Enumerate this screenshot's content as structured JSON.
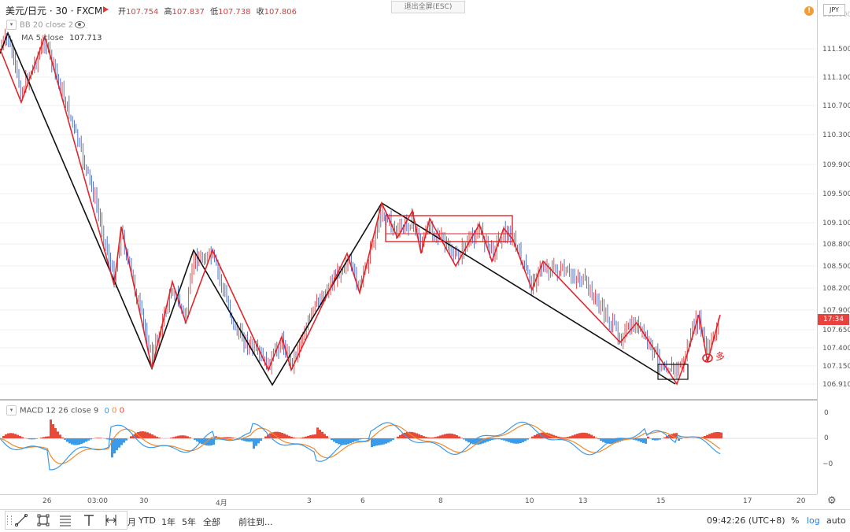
{
  "header": {
    "symbol": "美元/日元 · 30 · FXCM",
    "ohlc": [
      {
        "label": "开",
        "value": "107.754"
      },
      {
        "label": "高",
        "value": "107.837"
      },
      {
        "label": "低",
        "value": "107.738"
      },
      {
        "label": "收",
        "value": "107.806"
      }
    ],
    "exit_fullscreen": "退出全屏(ESC)",
    "warning_icon": "!"
  },
  "indicators": {
    "bb": "BB 20 close 2",
    "ma_label": "MA 5 close",
    "ma_value": "107.713",
    "macd_label": "MACD 12 26 close 9",
    "macd_values": [
      "0",
      "0",
      "0"
    ]
  },
  "price_scale": {
    "currency": "JPY",
    "ticks": [
      "111.500",
      "111.100",
      "110.700",
      "110.300",
      "109.900",
      "109.500",
      "109.100",
      "108.800",
      "108.500",
      "108.200",
      "107.900",
      "107.650",
      "107.400",
      "107.150",
      "106.910"
    ],
    "countdown": "17:34",
    "top_partial": "112.000"
  },
  "macd_scale": {
    "ticks": [
      "0",
      "0",
      "−0"
    ]
  },
  "time_axis": {
    "ticks": [
      "26",
      "03:00",
      "30",
      "4月",
      "3",
      "6",
      "8",
      "10",
      "13",
      "15",
      "17",
      "20"
    ]
  },
  "annotation": {
    "long_marker": "多"
  },
  "toolbar": {
    "periods": [
      "月",
      "YTD",
      "1年",
      "5年",
      "全部"
    ],
    "goto": "前往到...",
    "clock": "09:42:26 (UTC+8)",
    "percent": "%",
    "log": "log",
    "auto": "auto"
  },
  "colors": {
    "up": "#e03a3a",
    "down": "#3f63c5",
    "macd_line": "#3b9be8",
    "signal_line": "#f0892b",
    "hist_pos": "#e84a3a",
    "hist_neg": "#3b9be8"
  }
}
